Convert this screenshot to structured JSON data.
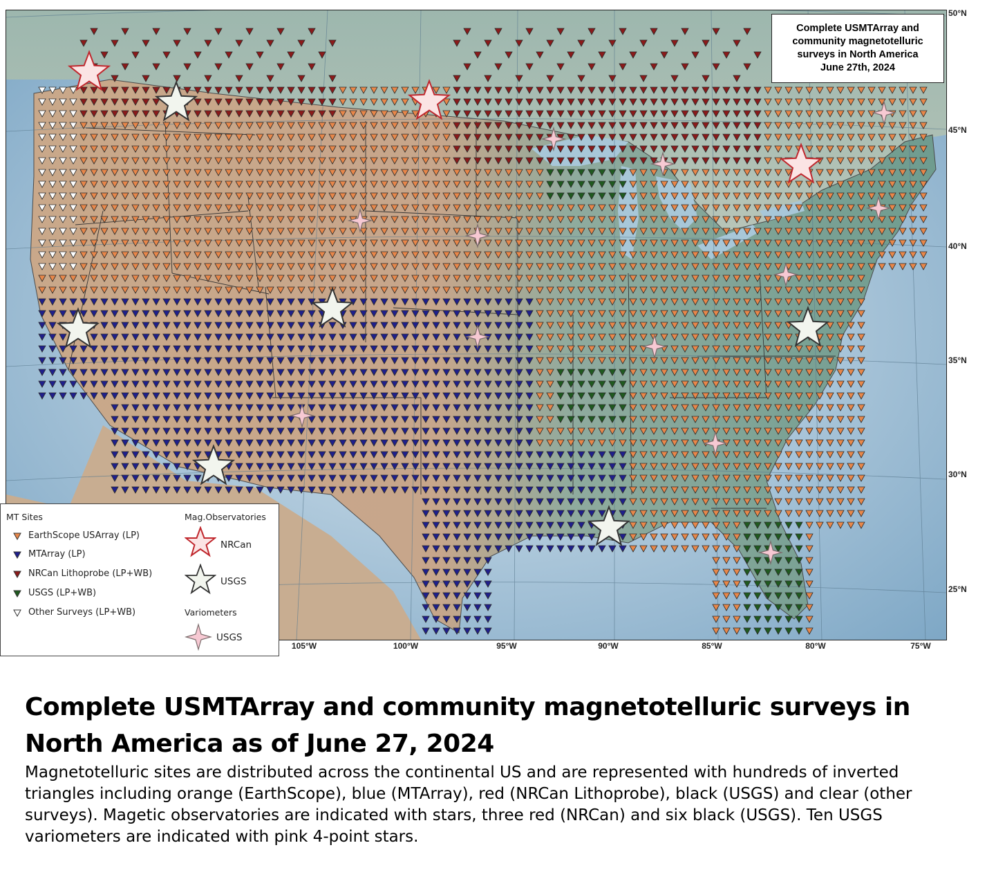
{
  "title_box": {
    "line1": "Complete USMTArray and",
    "line2": "community magnetotelluric",
    "line3": "surveys in North America",
    "line4": "June 27th,  2024"
  },
  "lat_labels": [
    "50°N",
    "45°N",
    "40°N",
    "35°N",
    "30°N",
    "25°N"
  ],
  "lon_labels": [
    "105°W",
    "100°W",
    "95°W",
    "90°W",
    "85°W",
    "80°W",
    "75°W"
  ],
  "legend": {
    "mt_sites_title": "MT Sites",
    "mag_obs_title": "Mag.Observatories",
    "variometers_title": "Variometers",
    "items": [
      {
        "label": "EarthScope USArray (LP)",
        "color": "#e8874a"
      },
      {
        "label": "MTArray (LP)",
        "color": "#1f1f8c"
      },
      {
        "label": "NRCan Lithoprobe (LP+WB)",
        "color": "#8b1a1a"
      },
      {
        "label": "USGS (LP+WB)",
        "color": "#1f5a1f"
      },
      {
        "label": "Other Surveys (LP+WB)",
        "color": "#ffffff"
      }
    ],
    "nrcan_label": "NRCan",
    "usgs_obs_label": "USGS",
    "usgs_var_label": "USGS"
  },
  "caption": {
    "title": "Complete USMTArray and community magnetotelluric surveys in North America as of June 27, 2024",
    "body": "Magnetotelluric sites are distributed across the continental US and are represented with hundreds of inverted triangles including orange (EarthScope), blue (MTArray), red (NRCan Lithoprobe), black (USGS) and clear (other surveys). Magetic observatories are indicated with stars, three red (NRCan) and six black (USGS). Ten USGS variometers are indicated with pink 4-point stars."
  }
}
